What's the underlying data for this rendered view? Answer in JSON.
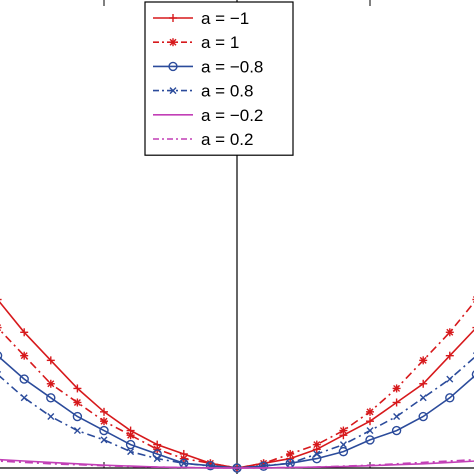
{
  "chart_data": {
    "type": "line",
    "title": "",
    "xlabel": "",
    "ylabel": "",
    "xlim": [
      -1.0,
      1.0
    ],
    "ylim": [
      0.0,
      1.0
    ],
    "grid": false,
    "legend_position": "top-center",
    "x": [
      -1.0,
      -0.9,
      -0.8,
      -0.7,
      -0.6,
      -0.5,
      -0.4,
      -0.3,
      -0.2,
      -0.1,
      0.0,
      0.1,
      0.2,
      0.3,
      0.4,
      0.5,
      0.6,
      0.7,
      0.8,
      0.9,
      1.0
    ],
    "series": [
      {
        "name": "a = −1",
        "color": "#d7191c",
        "linestyle": "solid",
        "marker": "plus",
        "values": [
          0.43,
          0.36,
          0.29,
          0.23,
          0.17,
          0.12,
          0.08,
          0.05,
          0.03,
          0.01,
          0.0,
          0.01,
          0.02,
          0.04,
          0.07,
          0.1,
          0.14,
          0.18,
          0.24,
          0.3,
          0.37
        ]
      },
      {
        "name": "a = 1",
        "color": "#d7191c",
        "linestyle": "dashdot",
        "marker": "star",
        "values": [
          0.37,
          0.3,
          0.24,
          0.18,
          0.14,
          0.1,
          0.07,
          0.04,
          0.02,
          0.01,
          0.0,
          0.01,
          0.03,
          0.05,
          0.08,
          0.12,
          0.17,
          0.23,
          0.29,
          0.36,
          0.43
        ]
      },
      {
        "name": "a = −0.8",
        "color": "#2b4b9b",
        "linestyle": "solid",
        "marker": "circle",
        "values": [
          0.3,
          0.24,
          0.19,
          0.15,
          0.11,
          0.08,
          0.05,
          0.03,
          0.01,
          0.005,
          0.0,
          0.004,
          0.01,
          0.02,
          0.035,
          0.06,
          0.08,
          0.11,
          0.15,
          0.2,
          0.25
        ]
      },
      {
        "name": "a = 0.8",
        "color": "#2b4b9b",
        "linestyle": "dashdot",
        "marker": "x",
        "values": [
          0.25,
          0.2,
          0.15,
          0.11,
          0.08,
          0.06,
          0.035,
          0.02,
          0.01,
          0.004,
          0.0,
          0.005,
          0.01,
          0.03,
          0.05,
          0.08,
          0.11,
          0.15,
          0.19,
          0.24,
          0.3
        ]
      },
      {
        "name": "a = −0.2",
        "color": "#c23fb6",
        "linestyle": "solid",
        "marker": "none",
        "values": [
          0.02,
          0.018,
          0.015,
          0.012,
          0.009,
          0.006,
          0.004,
          0.002,
          0.001,
          0.0003,
          0.0,
          0.0003,
          0.001,
          0.002,
          0.003,
          0.005,
          0.007,
          0.009,
          0.012,
          0.015,
          0.018
        ]
      },
      {
        "name": "a = 0.2",
        "color": "#c23fb6",
        "linestyle": "dashdot",
        "marker": "none",
        "values": [
          0.018,
          0.015,
          0.012,
          0.009,
          0.007,
          0.005,
          0.003,
          0.002,
          0.001,
          0.0003,
          0.0,
          0.0003,
          0.001,
          0.002,
          0.004,
          0.006,
          0.009,
          0.012,
          0.015,
          0.018,
          0.02
        ]
      }
    ]
  }
}
